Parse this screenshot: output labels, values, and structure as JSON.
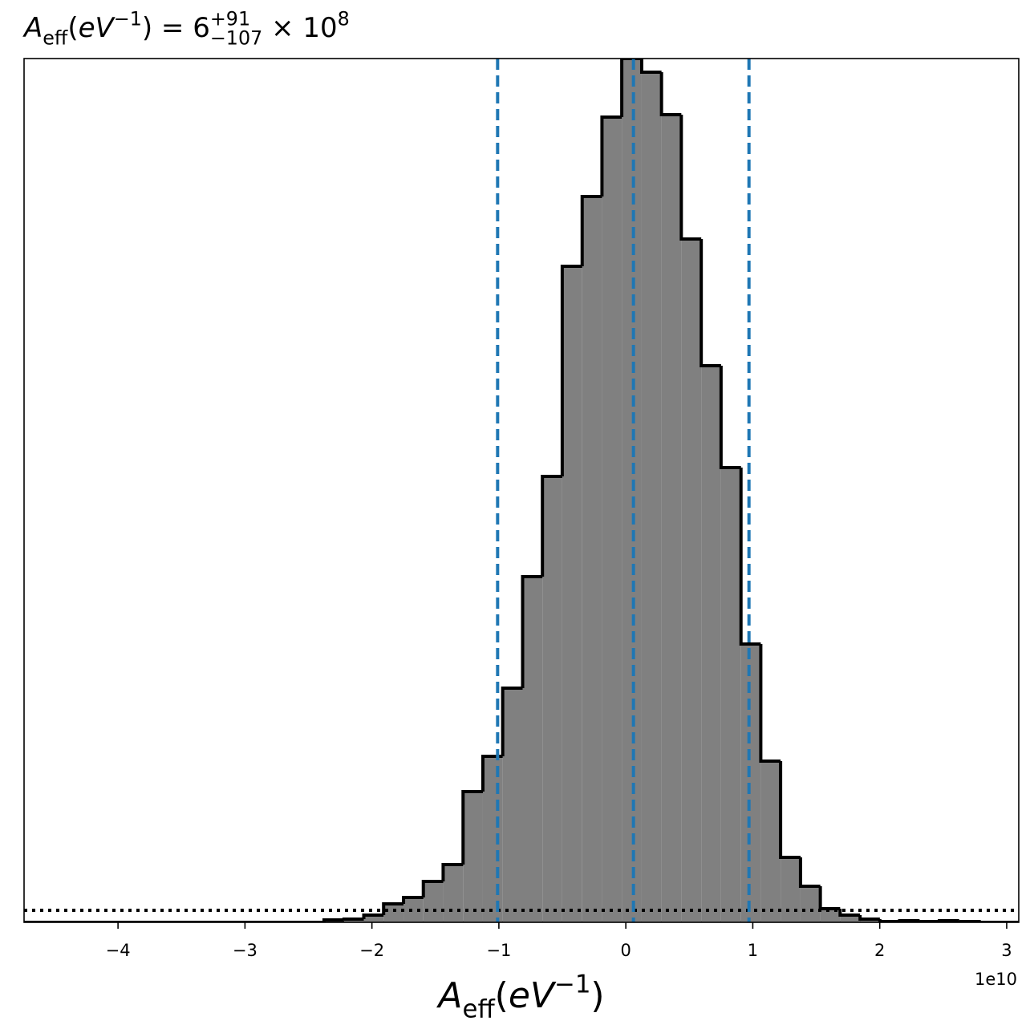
{
  "chart_data": {
    "type": "histogram",
    "title": [
      {
        "text": "A",
        "italic": true
      },
      {
        "text": "eff",
        "shift": "sub"
      },
      {
        "text": "("
      },
      {
        "text": "eV",
        "italic": true
      },
      {
        "text": "−1",
        "shift": "sup"
      },
      {
        "text": ") = 6"
      },
      {
        "text": "+91",
        "shift": "sup"
      },
      {
        "text": "−107",
        "shift": "sub",
        "stack": true
      },
      {
        "text": " × 10"
      },
      {
        "text": "8",
        "shift": "sup"
      }
    ],
    "x_label": [
      {
        "text": "A",
        "italic": true
      },
      {
        "text": "eff",
        "shift": "sub"
      },
      {
        "text": "("
      },
      {
        "text": "eV",
        "italic": true
      },
      {
        "text": "−1",
        "shift": "sup"
      },
      {
        "text": ")"
      }
    ],
    "x_offset_label": "1e10",
    "bins": [
      -2.377,
      -2.22,
      -2.064,
      -1.908,
      -1.751,
      -1.595,
      -1.439,
      -1.282,
      -1.126,
      -0.97,
      -0.813,
      -0.657,
      -0.501,
      -0.344,
      -0.188,
      -0.032,
      0.125,
      0.281,
      0.437,
      0.594,
      0.75,
      0.907,
      1.063,
      1.219,
      1.376,
      1.532,
      1.688,
      1.845,
      2.001,
      2.157,
      2.314,
      2.47,
      2.626,
      2.783
    ],
    "values": [
      3,
      4,
      9,
      23,
      31,
      51,
      72,
      163,
      207,
      292,
      431,
      556,
      818,
      905,
      1004,
      1077,
      1060,
      1007,
      852,
      694,
      567,
      347,
      201,
      81,
      45,
      17,
      9,
      4,
      1,
      2,
      1,
      2,
      1
    ],
    "color": "#808080",
    "edge_color": "#000000",
    "vlines": [
      -1.01,
      0.06,
      0.97
    ],
    "vline_color": "#1f77b4",
    "hline": 15,
    "hline_color": "#000000",
    "xlim": [
      -4.74,
      3.095
    ],
    "xticks": [
      {
        "value": -4,
        "label": "−4"
      },
      {
        "value": -3,
        "label": "−3"
      },
      {
        "value": -2,
        "label": "−2"
      },
      {
        "value": -1,
        "label": "−1"
      },
      0,
      1,
      2,
      3
    ],
    "ylim": [
      0,
      1077
    ],
    "grid": false
  }
}
